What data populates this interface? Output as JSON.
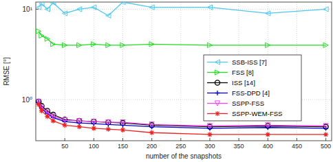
{
  "chart_data": {
    "type": "line",
    "x_label": "number of the snapshots",
    "y_label": "RMSE [°]",
    "x": [
      5,
      10,
      20,
      30,
      50,
      75,
      100,
      125,
      150,
      200,
      300,
      400,
      500
    ],
    "series": [
      {
        "name": "SSB-ISS [7]",
        "color": "#4cc8ee",
        "marker": "triangle-left",
        "line_style": "solid",
        "values": [
          10.5,
          11.5,
          10,
          11.8,
          9,
          10,
          10.5,
          8.5,
          12,
          10.5,
          10.5,
          9,
          10
        ]
      },
      {
        "name": "FSS [8]",
        "color": "#22dd22",
        "marker": "triangle-right",
        "line_style": "solid",
        "values": [
          5.7,
          5.1,
          4.7,
          4.1,
          4.0,
          4.0,
          4.1,
          4.0,
          4.0,
          4.1,
          4.0,
          4.0,
          4.0
        ]
      },
      {
        "name": "ISS [14]",
        "color": "#000000",
        "marker": "circle",
        "line_style": "solid",
        "values": [
          0.95,
          0.85,
          0.75,
          0.68,
          0.6,
          0.58,
          0.57,
          0.56,
          0.55,
          0.52,
          0.5,
          0.51,
          0.5
        ]
      },
      {
        "name": "FSS-DPD [4]",
        "color": "#0000cc",
        "marker": "plus",
        "line_style": "solid",
        "values": [
          0.93,
          0.8,
          0.7,
          0.63,
          0.57,
          0.55,
          0.54,
          0.53,
          0.52,
          0.5,
          0.48,
          0.49,
          0.48
        ]
      },
      {
        "name": "SSPP-FSS",
        "color": "#ee44ee",
        "marker": "triangle-down",
        "line_style": "solid",
        "values": [
          0.95,
          0.82,
          0.72,
          0.65,
          0.59,
          0.58,
          0.57,
          0.56,
          0.56,
          0.53,
          0.51,
          0.52,
          0.51
        ]
      },
      {
        "name": "SSPP-WEM-FSS",
        "color": "#ee2222",
        "marker": "asterisk",
        "line_style": "solid",
        "values": [
          0.88,
          0.75,
          0.65,
          0.58,
          0.52,
          0.5,
          0.48,
          0.47,
          0.46,
          0.43,
          0.41,
          0.41,
          0.41
        ]
      }
    ],
    "xlim": [
      0,
      510
    ],
    "xticks": [
      50,
      100,
      150,
      200,
      250,
      300,
      350,
      400,
      450,
      500
    ],
    "ylim": [
      0.35,
      12
    ],
    "yticks": [
      {
        "value": 1,
        "label": "10⁰"
      },
      {
        "value": 10,
        "label": "10¹"
      }
    ],
    "log": "y",
    "grid": true,
    "legend": "right"
  }
}
